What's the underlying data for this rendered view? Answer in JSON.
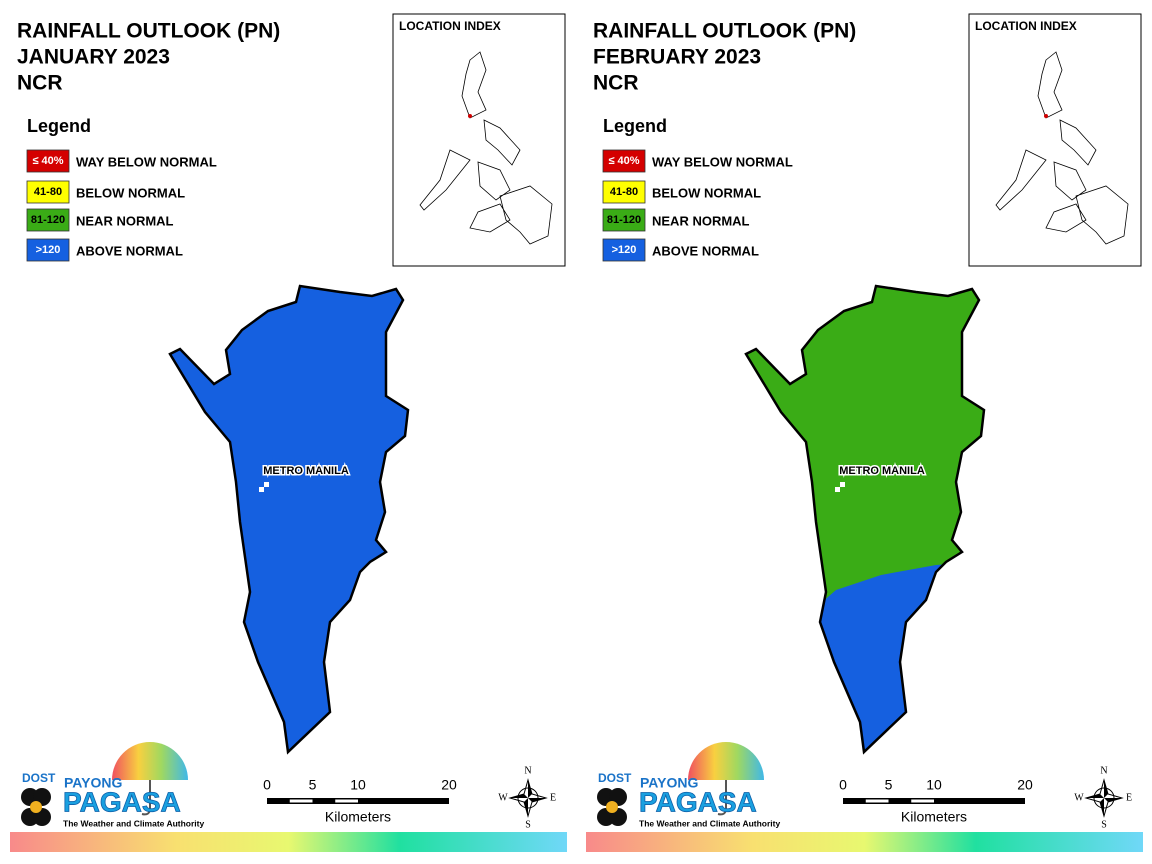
{
  "panels": [
    {
      "title_lines": [
        "RAINFALL OUTLOOK (PN)",
        "JANUARY 2023",
        "NCR"
      ],
      "location_index": "LOCATION INDEX",
      "legend": {
        "title": "Legend",
        "items": [
          {
            "range": "≤ 40%",
            "label": "WAY BELOW NORMAL",
            "color": "#d40000"
          },
          {
            "range": "41-80",
            "label": "BELOW NORMAL",
            "color": "#ffff00"
          },
          {
            "range": "81-120",
            "label": "NEAR NORMAL",
            "color": "#3aac16"
          },
          {
            "range": ">120",
            "label": "ABOVE NORMAL",
            "color": "#1560e0"
          }
        ]
      },
      "map_label": "METRO MANILA",
      "map_colors": [
        "#1560e0"
      ],
      "scale": {
        "ticks": [
          0,
          5,
          10,
          20
        ],
        "unit": "Kilometers"
      },
      "compass": {
        "N": "N",
        "E": "E",
        "S": "S",
        "W": "W"
      },
      "logo": {
        "agency": "DOST",
        "brand_top": "PAYONG",
        "brand": "PAGASA",
        "tagline": "The Weather and Climate Authority"
      }
    },
    {
      "title_lines": [
        "RAINFALL OUTLOOK (PN)",
        "FEBRUARY 2023",
        "NCR"
      ],
      "location_index": "LOCATION INDEX",
      "legend": {
        "title": "Legend",
        "items": [
          {
            "range": "≤ 40%",
            "label": "WAY BELOW NORMAL",
            "color": "#d40000"
          },
          {
            "range": "41-80",
            "label": "BELOW NORMAL",
            "color": "#ffff00"
          },
          {
            "range": "81-120",
            "label": "NEAR NORMAL",
            "color": "#3aac16"
          },
          {
            "range": ">120",
            "label": "ABOVE NORMAL",
            "color": "#1560e0"
          }
        ]
      },
      "map_label": "METRO MANILA",
      "map_colors": [
        "#3aac16",
        "#1560e0"
      ],
      "scale": {
        "ticks": [
          0,
          5,
          10,
          20
        ],
        "unit": "Kilometers"
      },
      "compass": {
        "N": "N",
        "E": "E",
        "S": "S",
        "W": "W"
      },
      "logo": {
        "agency": "DOST",
        "brand_top": "PAYONG",
        "brand": "PAGASA",
        "tagline": "The Weather and Climate Authority"
      }
    }
  ]
}
